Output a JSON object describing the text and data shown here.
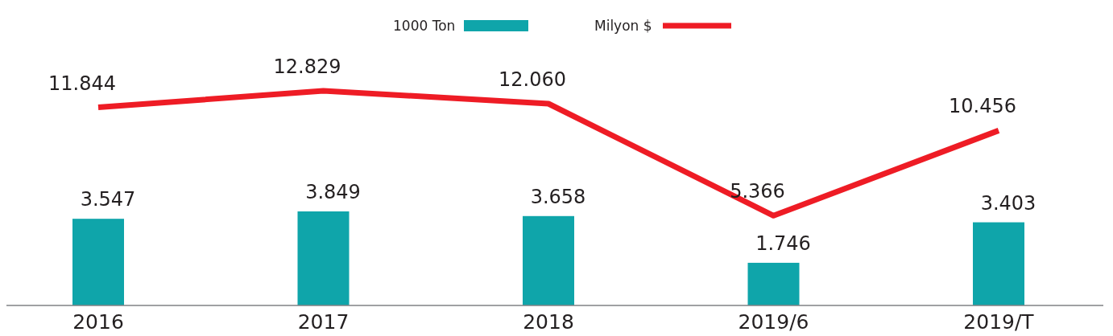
{
  "chart_data": {
    "type": "bar",
    "categories": [
      "2016",
      "2017",
      "2018",
      "2019/6",
      "2019/T"
    ],
    "series": [
      {
        "name": "1000 Ton",
        "color": "#0fa5aa",
        "values": [
          3547,
          3849,
          3658,
          1746,
          3403
        ],
        "value_labels": [
          "3.547",
          "3.849",
          "3.658",
          "1.746",
          "3.403"
        ]
      },
      {
        "name": "Milyon $",
        "type": "line",
        "axis": "y2",
        "color": "#ee1c25",
        "values": [
          11844,
          12829,
          12060,
          5366,
          10456
        ],
        "value_labels": [
          "11.844",
          "12.829",
          "12.060",
          "5.366",
          "10.456"
        ]
      }
    ],
    "tick_labels": false,
    "legend": "top"
  }
}
